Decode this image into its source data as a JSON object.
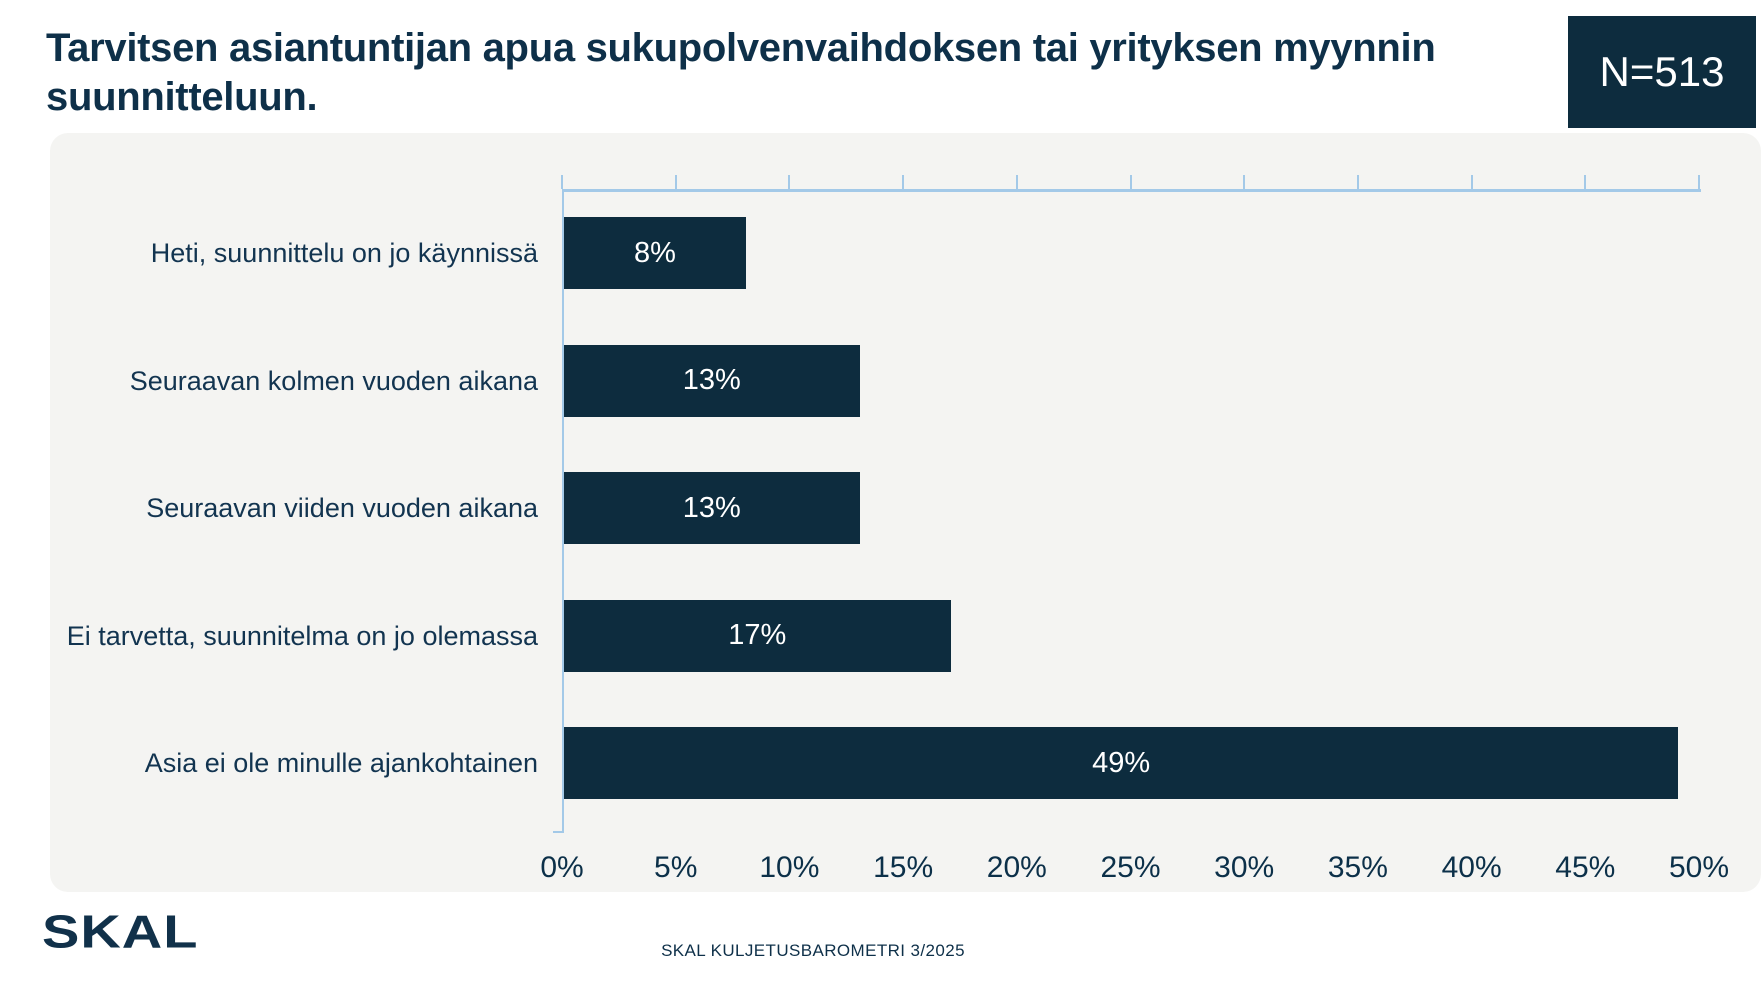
{
  "header": {
    "title": "Tarvitsen asiantuntijan apua sukupolvenvaihdoksen tai yrityksen myynnin suunnitteluun.",
    "sample_badge": "N=513"
  },
  "chart_data": {
    "type": "bar",
    "orientation": "horizontal",
    "title": "Tarvitsen asiantuntijan apua sukupolvenvaihdoksen tai yrityksen myynnin suunnitteluun.",
    "categories": [
      "Heti, suunnittelu on jo käynnissä",
      "Seuraavan kolmen vuoden aikana",
      "Seuraavan viiden vuoden aikana",
      "Ei tarvetta, suunnitelma on jo olemassa",
      "Asia ei ole minulle ajankohtainen"
    ],
    "values": [
      8,
      13,
      13,
      17,
      49
    ],
    "value_labels": [
      "8%",
      "13%",
      "13%",
      "17%",
      "49%"
    ],
    "xlim": [
      0,
      50
    ],
    "x_ticks": [
      "0%",
      "5%",
      "10%",
      "15%",
      "20%",
      "25%",
      "30%",
      "35%",
      "40%",
      "45%",
      "50%"
    ],
    "grid": false,
    "legend": "none",
    "colors": {
      "bar": "#0d2c3e",
      "axis": "#a3c9e8",
      "category_label": "#123450",
      "tick_label": "#0c3049",
      "value_label": "#ffffff",
      "panel_background": "#f4f4f2",
      "badge_background": "#0d2c3e",
      "title_text": "#0e3049"
    }
  },
  "footer": {
    "logo_text": "SKAL",
    "caption": "SKAL KULJETUSBAROMETRI 3/2025"
  }
}
